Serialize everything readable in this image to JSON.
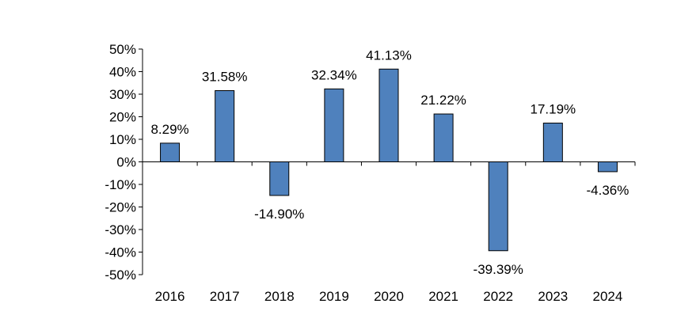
{
  "chart_data": {
    "type": "bar",
    "categories": [
      "2016",
      "2017",
      "2018",
      "2019",
      "2020",
      "2021",
      "2022",
      "2023",
      "2024"
    ],
    "values": [
      8.29,
      31.58,
      -14.9,
      32.34,
      41.13,
      21.22,
      -39.39,
      17.19,
      -4.36
    ],
    "data_labels": [
      "8.29%",
      "31.58%",
      "-14.90%",
      "32.34%",
      "41.13%",
      "21.22%",
      "-39.39%",
      "17.19%",
      "-4.36%"
    ],
    "y_ticks": [
      50,
      40,
      30,
      20,
      10,
      0,
      -10,
      -20,
      -30,
      -40,
      -50
    ],
    "y_tick_labels": [
      "50%",
      "40%",
      "30%",
      "20%",
      "10%",
      "0%",
      "-10%",
      "-20%",
      "-30%",
      "-40%",
      "-50%"
    ],
    "ylim": [
      -50,
      50
    ],
    "title": "",
    "xlabel": "",
    "ylabel": "",
    "grid": false,
    "legend": "none",
    "bar_color": "#4F81BD",
    "bar_edge_color": "#000000"
  }
}
